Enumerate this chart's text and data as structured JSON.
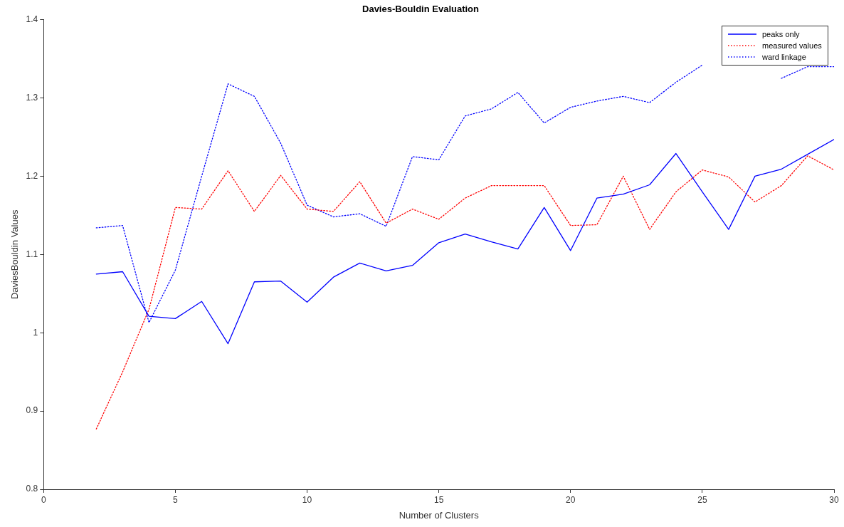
{
  "chart_data": {
    "type": "line",
    "title": "Davies-Bouldin Evaluation",
    "xlabel": "Number of Clusters",
    "ylabel": "DaviesBouldin Values",
    "x": [
      2,
      3,
      4,
      5,
      6,
      7,
      8,
      9,
      10,
      11,
      12,
      13,
      14,
      15,
      16,
      17,
      18,
      19,
      20,
      21,
      22,
      23,
      24,
      25,
      26,
      27,
      28,
      29,
      30
    ],
    "series": [
      {
        "name": "peaks only",
        "color": "#0000ff",
        "line_style": "solid",
        "values": [
          1.075,
          1.078,
          1.021,
          1.018,
          1.04,
          0.986,
          1.065,
          1.066,
          1.039,
          1.071,
          1.089,
          1.079,
          1.086,
          1.115,
          1.126,
          1.116,
          1.107,
          1.16,
          1.105,
          1.172,
          1.177,
          1.189,
          1.229,
          1.18,
          1.132,
          1.2,
          1.209,
          1.228,
          1.247
        ]
      },
      {
        "name": "measured values",
        "color": "#ff0000",
        "line_style": "dotted",
        "values": [
          0.877,
          0.95,
          1.03,
          1.16,
          1.158,
          1.207,
          1.155,
          1.201,
          1.158,
          1.155,
          1.193,
          1.14,
          1.158,
          1.145,
          1.172,
          1.188,
          1.188,
          1.188,
          1.137,
          1.138,
          1.2,
          1.132,
          1.18,
          1.208,
          1.199,
          1.167,
          1.188,
          1.226,
          1.208
        ]
      },
      {
        "name": "ward linkage",
        "color": "#0000ff",
        "line_style": "dotted",
        "values": [
          1.134,
          1.137,
          1.013,
          1.08,
          1.2,
          1.318,
          1.302,
          1.242,
          1.163,
          1.148,
          1.152,
          1.136,
          1.225,
          1.221,
          1.277,
          1.286,
          1.307,
          1.268,
          1.288,
          1.296,
          1.302,
          1.294,
          1.32,
          1.342,
          null,
          null,
          1.325,
          1.34,
          1.34
        ]
      }
    ],
    "xlim": [
      0,
      30
    ],
    "xticks": [
      0,
      5,
      10,
      15,
      20,
      25,
      30
    ],
    "ylim": [
      0.8,
      1.4
    ],
    "yticks": [
      0.8,
      0.9,
      1,
      1.1,
      1.2,
      1.3,
      1.4
    ],
    "grid": false,
    "legend": "top right",
    "marker": "none"
  }
}
